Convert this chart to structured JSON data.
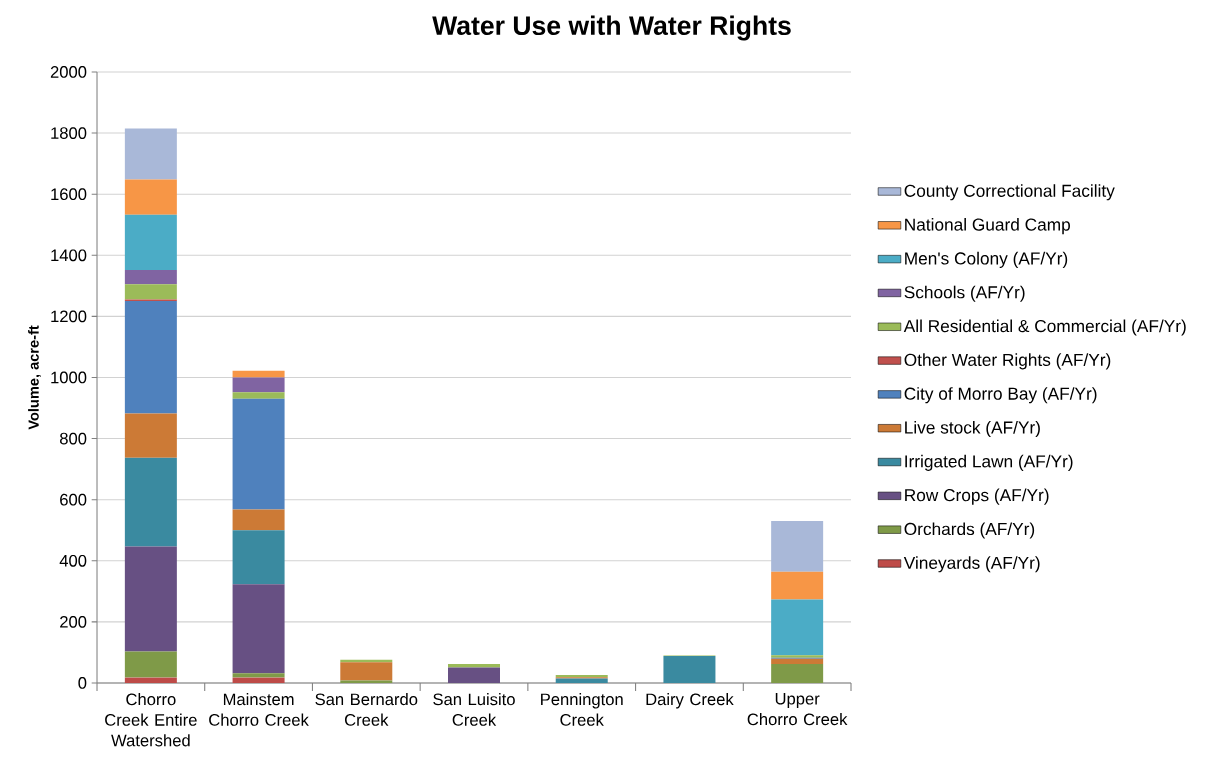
{
  "chart_data": {
    "type": "bar",
    "stacked": true,
    "title": "Water Use with Water Rights",
    "ylabel": "Volume, acre-ft",
    "categories": [
      "Chorro Creek Entire Watershed",
      "Mainstem Chorro Creek",
      "San Bernardo Creek",
      "San Luisito Creek",
      "Pennington Creek",
      "Dairy Creek",
      "Upper Chorro Creek"
    ],
    "ylim": [
      0,
      2000
    ],
    "yticks": [
      0,
      200,
      400,
      600,
      800,
      1000,
      1200,
      1400,
      1600,
      1800,
      2000
    ],
    "grid": "y",
    "legend": "right",
    "series": [
      {
        "name": "Vineyards (AF/Yr)",
        "color": "#be4b48",
        "values": [
          18,
          18,
          0,
          0,
          0,
          0,
          0
        ]
      },
      {
        "name": "Orchards (AF/Yr)",
        "color": "#7f9a48",
        "values": [
          85,
          14,
          8,
          0,
          0,
          0,
          62
        ]
      },
      {
        "name": "Row Crops (AF/Yr)",
        "color": "#675083",
        "values": [
          344,
          291,
          0,
          51,
          0,
          0,
          0
        ]
      },
      {
        "name": "Irrigated Lawn (AF/Yr)",
        "color": "#3a8aa0",
        "values": [
          290,
          177,
          0,
          0,
          15,
          88,
          0
        ]
      },
      {
        "name": "Live stock (AF/Yr)",
        "color": "#cc7a36",
        "values": [
          145,
          68,
          60,
          0,
          4,
          0,
          17
        ]
      },
      {
        "name": "City of Morro Bay (AF/Yr)",
        "color": "#4f81bd",
        "values": [
          368,
          362,
          0,
          0,
          0,
          0,
          4
        ]
      },
      {
        "name": "Other Water Rights (AF/Yr)",
        "color": "#c0504d",
        "values": [
          5,
          0,
          0,
          0,
          0,
          0,
          0
        ]
      },
      {
        "name": "All Residential & Commercial  (AF/Yr)",
        "color": "#9bbb59",
        "values": [
          50,
          22,
          8,
          11,
          7,
          2,
          8
        ]
      },
      {
        "name": "Schools (AF/Yr)",
        "color": "#8064a2",
        "values": [
          47,
          48,
          0,
          0,
          0,
          0,
          0
        ]
      },
      {
        "name": "Men's Colony (AF/Yr)",
        "color": "#4bacc6",
        "values": [
          181,
          0,
          0,
          0,
          0,
          0,
          182
        ]
      },
      {
        "name": "National Guard Camp",
        "color": "#f79646",
        "values": [
          115,
          22,
          0,
          0,
          0,
          0,
          91
        ]
      },
      {
        "name": "County Correctional Facility",
        "color": "#a9b8d8",
        "values": [
          167,
          0,
          0,
          0,
          0,
          0,
          166
        ]
      }
    ]
  }
}
